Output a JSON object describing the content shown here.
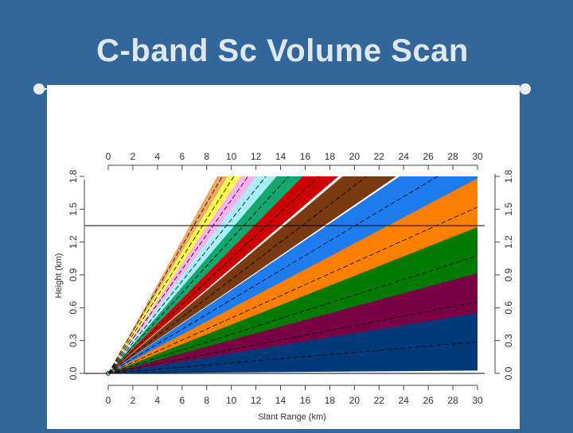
{
  "slide": {
    "title": "C-band Sc Volume Scan"
  },
  "colors": {
    "background": "#336699",
    "title": "#dfe7ef",
    "rule": "#e8edf2",
    "panel": "#ffffff"
  },
  "chart_data": {
    "type": "area",
    "title": "",
    "xlabel": "Slant Range (km)",
    "ylabel": "Height (km)",
    "xlim": [
      0,
      30
    ],
    "ylim": [
      0,
      1.8
    ],
    "x_ticks": [
      0,
      2,
      4,
      6,
      8,
      10,
      12,
      14,
      16,
      18,
      20,
      22,
      24,
      26,
      28,
      30
    ],
    "y_ticks": [
      "0.0",
      "0.3",
      "0.6",
      "0.9",
      "1.2",
      "1.5",
      "1.8"
    ],
    "y_tick_values": [
      0,
      0.3,
      0.6,
      0.9,
      1.2,
      1.5,
      1.8
    ],
    "reference_lines": [
      0.0,
      1.35
    ],
    "beams": [
      {
        "color": "#003a7a",
        "angle_deg": 0.55
      },
      {
        "color": "#7a0045",
        "angle_deg": 1.25
      },
      {
        "color": "#007a00",
        "angle_deg": 2.05
      },
      {
        "color": "#ff8000",
        "angle_deg": 2.9
      },
      {
        "color": "#1e7bf0",
        "angle_deg": 3.85
      },
      {
        "color": "#7a3a10",
        "angle_deg": 4.9
      },
      {
        "color": "#cc0000",
        "angle_deg": 6.0
      },
      {
        "color": "#10a870",
        "angle_deg": 7.0
      },
      {
        "color": "#a8f0f8",
        "angle_deg": 8.0
      },
      {
        "color": "#ffb0f0",
        "angle_deg": 9.0
      },
      {
        "color": "#ffff50",
        "angle_deg": 10.0
      },
      {
        "color": "#f0a860",
        "angle_deg": 11.0
      }
    ],
    "beamwidth_deg": 1.0,
    "max_range_km": 30,
    "grid": false,
    "legend": "none"
  }
}
